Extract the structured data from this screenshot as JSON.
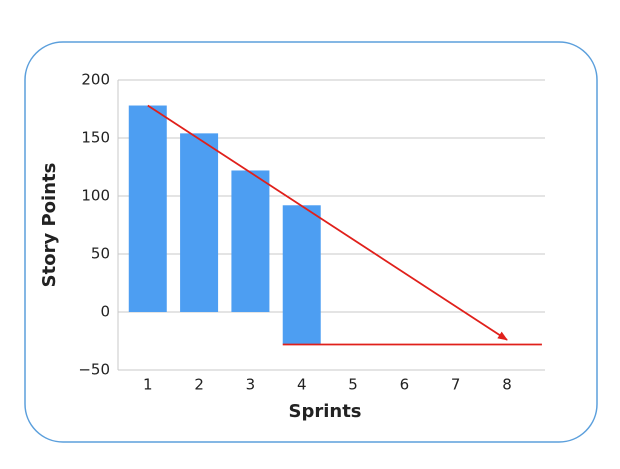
{
  "chart_data": {
    "type": "bar",
    "x_label": "Sprints",
    "y_label": "Story Points",
    "x": [
      1,
      2,
      3,
      4
    ],
    "series": [
      {
        "color": "#4d9ef2",
        "values": [
          178,
          154,
          122,
          92
        ]
      },
      {
        "color": "#4d9ef2",
        "values": [
          null,
          null,
          null,
          -28
        ]
      }
    ],
    "stacked": true,
    "lines": [
      {
        "color": "#e0201b",
        "x": [
          1,
          8
        ],
        "values": [
          178,
          -24
        ],
        "arrow": true
      },
      {
        "color": "#e0201b",
        "x": [
          3.63,
          8.68
        ],
        "values": [
          -28,
          -28
        ],
        "arrow": false
      }
    ],
    "xlim": [
      0.42,
      8.74
    ],
    "xticks": [
      1,
      2,
      3,
      4,
      5,
      6,
      7,
      8
    ],
    "ylim": [
      -50,
      200
    ],
    "yticks": [
      200,
      150,
      100,
      50,
      0,
      {
        "value": -50,
        "label": "−50"
      }
    ],
    "grid": true
  }
}
